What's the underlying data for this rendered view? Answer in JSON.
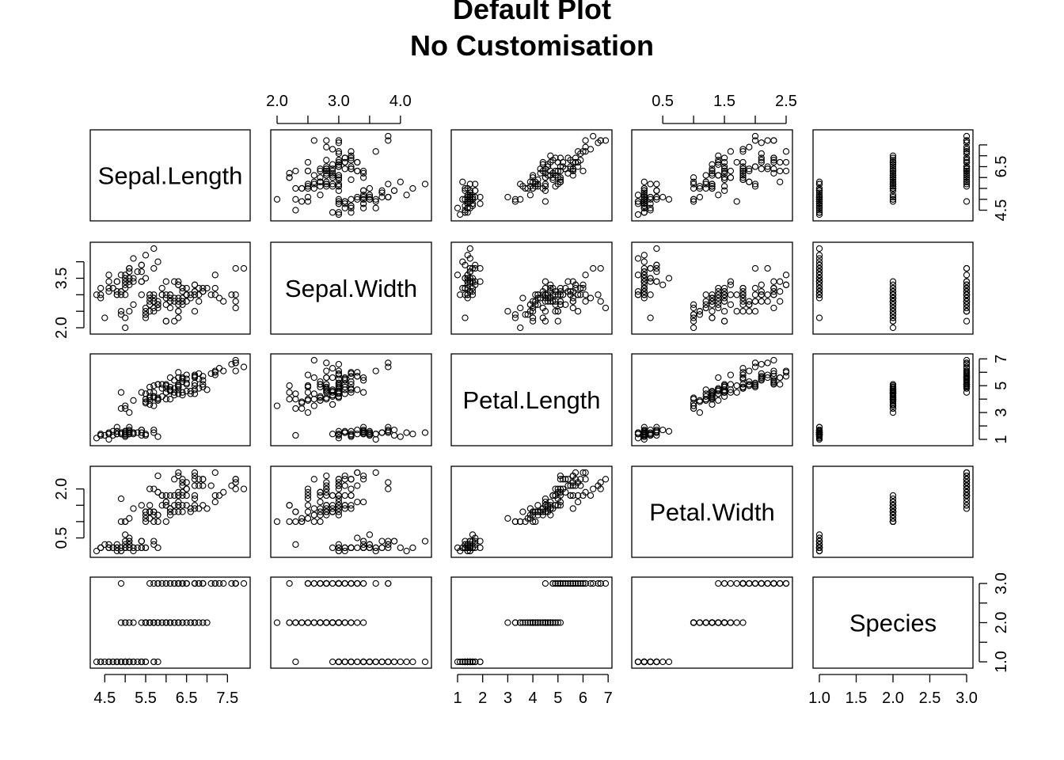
{
  "title_line1": "Default Plot",
  "title_line2": "No Customisation",
  "chart_data": {
    "type": "scatter",
    "kind": "scatterplot-matrix",
    "variables": [
      "Sepal.Length",
      "Sepal.Width",
      "Petal.Length",
      "Petal.Width",
      "Species"
    ],
    "ranges": [
      [
        4.3,
        7.9
      ],
      [
        2.0,
        4.4
      ],
      [
        1.0,
        6.9
      ],
      [
        0.1,
        2.5
      ],
      [
        1,
        3
      ]
    ],
    "tick_labels": [
      [
        "4.5",
        "5.5",
        "6.5",
        "7.5"
      ],
      [
        "2.0",
        "3.0",
        "4.0"
      ],
      [
        "1",
        "2",
        "3",
        "4",
        "5",
        "6",
        "7"
      ],
      [
        "0.5",
        "1.5",
        "2.5"
      ],
      [
        "1.0",
        "1.5",
        "2.0",
        "2.5",
        "3.0"
      ]
    ],
    "right_tick_labels_row1": [
      "4.5",
      "6.5"
    ],
    "left_tick_labels_row2": [
      "2.0",
      "3.5"
    ],
    "right_tick_labels_row3": [
      "1",
      "3",
      "5",
      "7"
    ],
    "left_tick_labels_row4": [
      "0.5",
      "2.0"
    ],
    "right_tick_labels_row5": [
      "1.0",
      "2.0",
      "3.0"
    ],
    "point_marker": "open circle",
    "point_color": "#000000",
    "observations": [
      [
        5.1,
        3.5,
        1.4,
        0.2,
        1
      ],
      [
        4.9,
        3.0,
        1.4,
        0.2,
        1
      ],
      [
        4.7,
        3.2,
        1.3,
        0.2,
        1
      ],
      [
        4.6,
        3.1,
        1.5,
        0.2,
        1
      ],
      [
        5.0,
        3.6,
        1.4,
        0.2,
        1
      ],
      [
        5.4,
        3.9,
        1.7,
        0.4,
        1
      ],
      [
        4.6,
        3.4,
        1.4,
        0.3,
        1
      ],
      [
        5.0,
        3.4,
        1.5,
        0.2,
        1
      ],
      [
        4.4,
        2.9,
        1.4,
        0.2,
        1
      ],
      [
        4.9,
        3.1,
        1.5,
        0.1,
        1
      ],
      [
        5.4,
        3.7,
        1.5,
        0.2,
        1
      ],
      [
        4.8,
        3.4,
        1.6,
        0.2,
        1
      ],
      [
        4.8,
        3.0,
        1.4,
        0.1,
        1
      ],
      [
        4.3,
        3.0,
        1.1,
        0.1,
        1
      ],
      [
        5.8,
        4.0,
        1.2,
        0.2,
        1
      ],
      [
        5.7,
        4.4,
        1.5,
        0.4,
        1
      ],
      [
        5.4,
        3.9,
        1.3,
        0.4,
        1
      ],
      [
        5.1,
        3.5,
        1.4,
        0.3,
        1
      ],
      [
        5.7,
        3.8,
        1.7,
        0.3,
        1
      ],
      [
        5.1,
        3.8,
        1.5,
        0.3,
        1
      ],
      [
        5.4,
        3.4,
        1.7,
        0.2,
        1
      ],
      [
        5.1,
        3.7,
        1.5,
        0.4,
        1
      ],
      [
        4.6,
        3.6,
        1.0,
        0.2,
        1
      ],
      [
        5.1,
        3.3,
        1.7,
        0.5,
        1
      ],
      [
        4.8,
        3.4,
        1.9,
        0.2,
        1
      ],
      [
        5.0,
        3.0,
        1.6,
        0.2,
        1
      ],
      [
        5.0,
        3.4,
        1.6,
        0.4,
        1
      ],
      [
        5.2,
        3.5,
        1.5,
        0.2,
        1
      ],
      [
        5.2,
        3.4,
        1.4,
        0.2,
        1
      ],
      [
        4.7,
        3.2,
        1.6,
        0.2,
        1
      ],
      [
        4.8,
        3.1,
        1.6,
        0.2,
        1
      ],
      [
        5.4,
        3.4,
        1.5,
        0.4,
        1
      ],
      [
        5.2,
        4.1,
        1.5,
        0.1,
        1
      ],
      [
        5.5,
        4.2,
        1.4,
        0.2,
        1
      ],
      [
        4.9,
        3.1,
        1.5,
        0.2,
        1
      ],
      [
        5.0,
        3.2,
        1.2,
        0.2,
        1
      ],
      [
        5.5,
        3.5,
        1.3,
        0.2,
        1
      ],
      [
        4.9,
        3.6,
        1.4,
        0.1,
        1
      ],
      [
        4.4,
        3.0,
        1.3,
        0.2,
        1
      ],
      [
        5.1,
        3.4,
        1.5,
        0.2,
        1
      ],
      [
        5.0,
        3.5,
        1.3,
        0.3,
        1
      ],
      [
        4.5,
        2.3,
        1.3,
        0.3,
        1
      ],
      [
        4.4,
        3.2,
        1.3,
        0.2,
        1
      ],
      [
        5.0,
        3.5,
        1.6,
        0.6,
        1
      ],
      [
        5.1,
        3.8,
        1.9,
        0.4,
        1
      ],
      [
        4.8,
        3.0,
        1.4,
        0.3,
        1
      ],
      [
        5.1,
        3.8,
        1.6,
        0.2,
        1
      ],
      [
        4.6,
        3.2,
        1.4,
        0.2,
        1
      ],
      [
        5.3,
        3.7,
        1.5,
        0.2,
        1
      ],
      [
        5.0,
        3.3,
        1.4,
        0.2,
        1
      ],
      [
        7.0,
        3.2,
        4.7,
        1.4,
        2
      ],
      [
        6.4,
        3.2,
        4.5,
        1.5,
        2
      ],
      [
        6.9,
        3.1,
        4.9,
        1.5,
        2
      ],
      [
        5.5,
        2.3,
        4.0,
        1.3,
        2
      ],
      [
        6.5,
        2.8,
        4.6,
        1.5,
        2
      ],
      [
        5.7,
        2.8,
        4.5,
        1.3,
        2
      ],
      [
        6.3,
        3.3,
        4.7,
        1.6,
        2
      ],
      [
        4.9,
        2.4,
        3.3,
        1.0,
        2
      ],
      [
        6.6,
        2.9,
        4.6,
        1.3,
        2
      ],
      [
        5.2,
        2.7,
        3.9,
        1.4,
        2
      ],
      [
        5.0,
        2.0,
        3.5,
        1.0,
        2
      ],
      [
        5.9,
        3.0,
        4.2,
        1.5,
        2
      ],
      [
        6.0,
        2.2,
        4.0,
        1.0,
        2
      ],
      [
        6.1,
        2.9,
        4.7,
        1.4,
        2
      ],
      [
        5.6,
        2.9,
        3.6,
        1.3,
        2
      ],
      [
        6.7,
        3.1,
        4.4,
        1.4,
        2
      ],
      [
        5.6,
        3.0,
        4.5,
        1.5,
        2
      ],
      [
        5.8,
        2.7,
        4.1,
        1.0,
        2
      ],
      [
        6.2,
        2.2,
        4.5,
        1.5,
        2
      ],
      [
        5.6,
        2.5,
        3.9,
        1.1,
        2
      ],
      [
        5.9,
        3.2,
        4.8,
        1.8,
        2
      ],
      [
        6.1,
        2.8,
        4.0,
        1.3,
        2
      ],
      [
        6.3,
        2.5,
        4.9,
        1.5,
        2
      ],
      [
        6.1,
        2.8,
        4.7,
        1.2,
        2
      ],
      [
        6.4,
        2.9,
        4.3,
        1.3,
        2
      ],
      [
        6.6,
        3.0,
        4.4,
        1.4,
        2
      ],
      [
        6.8,
        2.8,
        4.8,
        1.4,
        2
      ],
      [
        6.7,
        3.0,
        5.0,
        1.7,
        2
      ],
      [
        6.0,
        2.9,
        4.5,
        1.5,
        2
      ],
      [
        5.7,
        2.6,
        3.5,
        1.0,
        2
      ],
      [
        5.5,
        2.4,
        3.8,
        1.1,
        2
      ],
      [
        5.5,
        2.4,
        3.7,
        1.0,
        2
      ],
      [
        5.8,
        2.7,
        3.9,
        1.2,
        2
      ],
      [
        6.0,
        2.7,
        5.1,
        1.6,
        2
      ],
      [
        5.4,
        3.0,
        4.5,
        1.5,
        2
      ],
      [
        6.0,
        3.4,
        4.5,
        1.6,
        2
      ],
      [
        6.7,
        3.1,
        4.7,
        1.5,
        2
      ],
      [
        6.3,
        2.3,
        4.4,
        1.3,
        2
      ],
      [
        5.6,
        3.0,
        4.1,
        1.3,
        2
      ],
      [
        5.5,
        2.5,
        4.0,
        1.3,
        2
      ],
      [
        5.5,
        2.6,
        4.4,
        1.2,
        2
      ],
      [
        6.1,
        3.0,
        4.6,
        1.4,
        2
      ],
      [
        5.8,
        2.6,
        4.0,
        1.2,
        2
      ],
      [
        5.0,
        2.3,
        3.3,
        1.0,
        2
      ],
      [
        5.6,
        2.7,
        4.2,
        1.3,
        2
      ],
      [
        5.7,
        3.0,
        4.2,
        1.2,
        2
      ],
      [
        5.7,
        2.9,
        4.2,
        1.3,
        2
      ],
      [
        6.2,
        2.9,
        4.3,
        1.3,
        2
      ],
      [
        5.1,
        2.5,
        3.0,
        1.1,
        2
      ],
      [
        5.7,
        2.8,
        4.1,
        1.3,
        2
      ],
      [
        6.3,
        3.3,
        6.0,
        2.5,
        3
      ],
      [
        5.8,
        2.7,
        5.1,
        1.9,
        3
      ],
      [
        7.1,
        3.0,
        5.9,
        2.1,
        3
      ],
      [
        6.3,
        2.9,
        5.6,
        1.8,
        3
      ],
      [
        6.5,
        3.0,
        5.8,
        2.2,
        3
      ],
      [
        7.6,
        3.0,
        6.6,
        2.1,
        3
      ],
      [
        4.9,
        2.5,
        4.5,
        1.7,
        3
      ],
      [
        7.3,
        2.9,
        6.3,
        1.8,
        3
      ],
      [
        6.7,
        2.5,
        5.8,
        1.8,
        3
      ],
      [
        7.2,
        3.6,
        6.1,
        2.5,
        3
      ],
      [
        6.5,
        3.2,
        5.1,
        2.0,
        3
      ],
      [
        6.4,
        2.7,
        5.3,
        1.9,
        3
      ],
      [
        6.8,
        3.0,
        5.5,
        2.1,
        3
      ],
      [
        5.7,
        2.5,
        5.0,
        2.0,
        3
      ],
      [
        5.8,
        2.8,
        5.1,
        2.4,
        3
      ],
      [
        6.4,
        3.2,
        5.3,
        2.3,
        3
      ],
      [
        6.5,
        3.0,
        5.5,
        1.8,
        3
      ],
      [
        7.7,
        3.8,
        6.7,
        2.2,
        3
      ],
      [
        7.7,
        2.6,
        6.9,
        2.3,
        3
      ],
      [
        6.0,
        2.2,
        5.0,
        1.5,
        3
      ],
      [
        6.9,
        3.2,
        5.7,
        2.3,
        3
      ],
      [
        5.6,
        2.8,
        4.9,
        2.0,
        3
      ],
      [
        7.7,
        2.8,
        6.7,
        2.0,
        3
      ],
      [
        6.3,
        2.7,
        4.9,
        1.8,
        3
      ],
      [
        6.7,
        3.3,
        5.7,
        2.1,
        3
      ],
      [
        7.2,
        3.2,
        6.0,
        1.8,
        3
      ],
      [
        6.2,
        2.8,
        4.8,
        1.8,
        3
      ],
      [
        6.1,
        3.0,
        4.9,
        1.8,
        3
      ],
      [
        6.4,
        2.8,
        5.6,
        2.1,
        3
      ],
      [
        7.2,
        3.0,
        5.8,
        1.6,
        3
      ],
      [
        7.4,
        2.8,
        6.1,
        1.9,
        3
      ],
      [
        7.9,
        3.8,
        6.4,
        2.0,
        3
      ],
      [
        6.4,
        2.8,
        5.6,
        2.2,
        3
      ],
      [
        6.3,
        2.8,
        5.1,
        1.5,
        3
      ],
      [
        6.1,
        2.6,
        5.6,
        1.4,
        3
      ],
      [
        7.7,
        3.0,
        6.1,
        2.3,
        3
      ],
      [
        6.3,
        3.4,
        5.6,
        2.4,
        3
      ],
      [
        6.4,
        3.1,
        5.5,
        1.8,
        3
      ],
      [
        6.0,
        3.0,
        4.8,
        1.8,
        3
      ],
      [
        6.9,
        3.1,
        5.4,
        2.1,
        3
      ],
      [
        6.7,
        3.1,
        5.6,
        2.4,
        3
      ],
      [
        6.9,
        3.1,
        5.1,
        2.3,
        3
      ],
      [
        5.8,
        2.7,
        5.1,
        1.9,
        3
      ],
      [
        6.8,
        3.2,
        5.9,
        2.3,
        3
      ],
      [
        6.7,
        3.3,
        5.7,
        2.5,
        3
      ],
      [
        6.7,
        3.0,
        5.2,
        2.3,
        3
      ],
      [
        6.3,
        2.5,
        5.0,
        1.9,
        3
      ],
      [
        6.5,
        3.0,
        5.2,
        2.0,
        3
      ],
      [
        6.2,
        3.4,
        5.4,
        2.3,
        3
      ],
      [
        5.9,
        3.0,
        5.1,
        1.8,
        3
      ]
    ]
  }
}
